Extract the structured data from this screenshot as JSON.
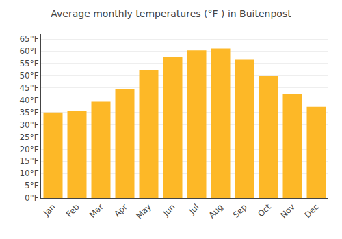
{
  "chart_data": {
    "type": "bar",
    "title": "Average monthly temperatures (°F ) in Buitenpost",
    "categories": [
      "Jan",
      "Feb",
      "Mar",
      "Apr",
      "May",
      "Jun",
      "Jul",
      "Aug",
      "Sep",
      "Oct",
      "Nov",
      "Dec"
    ],
    "values": [
      35,
      35.5,
      39.5,
      44.5,
      52.5,
      57.5,
      60.5,
      61,
      56.5,
      50,
      42.5,
      37.5
    ],
    "color": "#FDB827",
    "ylim": [
      0,
      67
    ],
    "yticks": [
      {
        "value": 0,
        "label": "0°F"
      },
      {
        "value": 5,
        "label": "5°F"
      },
      {
        "value": 10,
        "label": "10°F"
      },
      {
        "value": 15,
        "label": "15°F"
      },
      {
        "value": 20,
        "label": "20°F"
      },
      {
        "value": 25,
        "label": "25°F"
      },
      {
        "value": 30,
        "label": "30°F"
      },
      {
        "value": 35,
        "label": "35°F"
      },
      {
        "value": 40,
        "label": "40°F"
      },
      {
        "value": 45,
        "label": "45°F"
      },
      {
        "value": 50,
        "label": "50°F"
      },
      {
        "value": 55,
        "label": "55°F"
      },
      {
        "value": 60,
        "label": "60°F"
      },
      {
        "value": 65,
        "label": "65°F"
      }
    ],
    "grid": true
  }
}
